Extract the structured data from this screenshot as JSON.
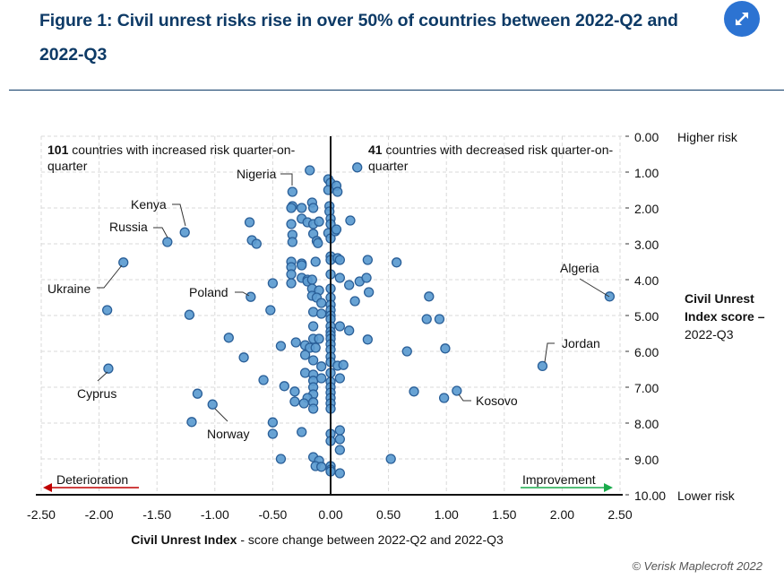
{
  "header": {
    "title": "Figure 1: Civil unrest risks rise in over 50% of countries between 2022-Q2 and 2022-Q3",
    "expand_icon": "expand-arrows-icon"
  },
  "footer": {
    "copyright": "© Verisk Maplecroft 2022"
  },
  "colors": {
    "title": "#0d3a66",
    "dot_fill": "#5b9bd0",
    "dot_stroke": "#2a5f98",
    "deterioration_arrow": "#c00000",
    "improvement_arrow": "#1aab4b",
    "expand_button": "#2c73d2"
  },
  "chart_data": {
    "type": "scatter",
    "title": "Figure 1: Civil unrest risks rise in over 50% of countries between 2022-Q2 and 2022-Q3",
    "xlabel_bold": "Civil Unrest Index",
    "xlabel_rest": " - score change between 2022-Q2 and 2022-Q3",
    "ylabel_line1": "Civil Unrest",
    "ylabel_line2": "Index score –",
    "ylabel_line3": "2022-Q3",
    "xlim": [
      -2.5,
      2.5
    ],
    "ylim": [
      0,
      10
    ],
    "y_inverted": true,
    "y_axis_side": "right",
    "grid": true,
    "x_ticks": [
      "-2.50",
      "-2.00",
      "-1.50",
      "-1.00",
      "-0.50",
      "0.00",
      "0.50",
      "1.00",
      "1.50",
      "2.00",
      "2.50"
    ],
    "y_ticks": [
      "0.00",
      "1.00",
      "2.00",
      "3.00",
      "4.00",
      "5.00",
      "6.00",
      "7.00",
      "8.00",
      "9.00",
      "10.00"
    ],
    "y_top_note": "Higher risk",
    "y_bottom_note": "Lower risk",
    "annotation_left": {
      "count": "101",
      "text": " countries with increased risk quarter-on-",
      "text2": "quarter"
    },
    "annotation_right": {
      "count": "41",
      "text": " countries with decreased risk quarter-on-",
      "text2": "quarter"
    },
    "direction_left": "Deterioration",
    "direction_right": "Improvement",
    "labeled_points": [
      {
        "name": "Nigeria",
        "x": -0.33,
        "y": 1.55
      },
      {
        "name": "Kenya",
        "x": -1.26,
        "y": 2.68
      },
      {
        "name": "Russia",
        "x": -1.41,
        "y": 2.95
      },
      {
        "name": "Ukraine",
        "x": -1.79,
        "y": 3.52
      },
      {
        "name": "Poland",
        "x": -0.69,
        "y": 4.48
      },
      {
        "name": "Cyprus",
        "x": -1.92,
        "y": 6.48
      },
      {
        "name": "Norway",
        "x": -1.02,
        "y": 7.48
      },
      {
        "name": "Algeria",
        "x": 2.41,
        "y": 4.47
      },
      {
        "name": "Jordan",
        "x": 1.83,
        "y": 6.41
      },
      {
        "name": "Kosovo",
        "x": 1.09,
        "y": 7.1
      }
    ],
    "points": [
      {
        "x": -0.18,
        "y": 0.95
      },
      {
        "x": 0.23,
        "y": 0.87
      },
      {
        "x": -0.02,
        "y": 1.2
      },
      {
        "x": 0.0,
        "y": 1.3
      },
      {
        "x": 0.05,
        "y": 1.38
      },
      {
        "x": 0.06,
        "y": 1.55
      },
      {
        "x": -0.02,
        "y": 1.5
      },
      {
        "x": -0.33,
        "y": 1.95
      },
      {
        "x": -0.34,
        "y": 2.0
      },
      {
        "x": -0.25,
        "y": 2.0
      },
      {
        "x": -0.16,
        "y": 1.85
      },
      {
        "x": -0.15,
        "y": 2.0
      },
      {
        "x": -0.01,
        "y": 1.95
      },
      {
        "x": -0.01,
        "y": 2.1
      },
      {
        "x": -0.34,
        "y": 2.45
      },
      {
        "x": -0.25,
        "y": 2.3
      },
      {
        "x": -0.2,
        "y": 2.4
      },
      {
        "x": -0.15,
        "y": 2.45
      },
      {
        "x": -0.1,
        "y": 2.38
      },
      {
        "x": 0.0,
        "y": 2.3
      },
      {
        "x": 0.0,
        "y": 2.45
      },
      {
        "x": 0.17,
        "y": 2.35
      },
      {
        "x": -0.7,
        "y": 2.4
      },
      {
        "x": -0.33,
        "y": 2.75
      },
      {
        "x": -0.33,
        "y": 2.95
      },
      {
        "x": -0.15,
        "y": 2.72
      },
      {
        "x": -0.12,
        "y": 2.92
      },
      {
        "x": -0.11,
        "y": 2.98
      },
      {
        "x": -0.02,
        "y": 2.7
      },
      {
        "x": 0.0,
        "y": 2.85
      },
      {
        "x": 0.04,
        "y": 2.65
      },
      {
        "x": 0.05,
        "y": 2.6
      },
      {
        "x": -0.68,
        "y": 2.9
      },
      {
        "x": -0.64,
        "y": 3.0
      },
      {
        "x": -0.34,
        "y": 3.5
      },
      {
        "x": -0.34,
        "y": 3.65
      },
      {
        "x": -0.25,
        "y": 3.55
      },
      {
        "x": -0.25,
        "y": 3.6
      },
      {
        "x": -0.13,
        "y": 3.5
      },
      {
        "x": 0.0,
        "y": 3.35
      },
      {
        "x": 0.0,
        "y": 3.45
      },
      {
        "x": 0.06,
        "y": 3.4
      },
      {
        "x": 0.08,
        "y": 3.45
      },
      {
        "x": 0.32,
        "y": 3.45
      },
      {
        "x": 0.57,
        "y": 3.52
      },
      {
        "x": -0.34,
        "y": 3.85
      },
      {
        "x": -0.25,
        "y": 3.95
      },
      {
        "x": -0.2,
        "y": 4.0
      },
      {
        "x": 0.0,
        "y": 3.85
      },
      {
        "x": 0.08,
        "y": 3.95
      },
      {
        "x": -0.34,
        "y": 4.1
      },
      {
        "x": -0.2,
        "y": 4.05
      },
      {
        "x": -0.16,
        "y": 4.0
      },
      {
        "x": -0.16,
        "y": 4.25
      },
      {
        "x": -0.1,
        "y": 4.3
      },
      {
        "x": 0.0,
        "y": 4.25
      },
      {
        "x": 0.16,
        "y": 4.15
      },
      {
        "x": 0.25,
        "y": 4.05
      },
      {
        "x": 0.31,
        "y": 3.95
      },
      {
        "x": 0.33,
        "y": 4.35
      },
      {
        "x": -0.5,
        "y": 4.1
      },
      {
        "x": -0.16,
        "y": 4.45
      },
      {
        "x": -0.12,
        "y": 4.5
      },
      {
        "x": -0.08,
        "y": 4.65
      },
      {
        "x": 0.0,
        "y": 4.5
      },
      {
        "x": 0.0,
        "y": 4.7
      },
      {
        "x": 0.21,
        "y": 4.6
      },
      {
        "x": 0.85,
        "y": 4.47
      },
      {
        "x": -1.93,
        "y": 4.85
      },
      {
        "x": -1.22,
        "y": 4.98
      },
      {
        "x": -0.52,
        "y": 4.85
      },
      {
        "x": -0.15,
        "y": 4.9
      },
      {
        "x": -0.08,
        "y": 4.95
      },
      {
        "x": 0.0,
        "y": 4.85
      },
      {
        "x": 0.0,
        "y": 5.0
      },
      {
        "x": 0.0,
        "y": 5.1
      },
      {
        "x": 0.83,
        "y": 5.1
      },
      {
        "x": 0.94,
        "y": 5.1
      },
      {
        "x": -0.15,
        "y": 5.3
      },
      {
        "x": 0.0,
        "y": 5.3
      },
      {
        "x": 0.0,
        "y": 5.45
      },
      {
        "x": 0.0,
        "y": 5.55
      },
      {
        "x": 0.08,
        "y": 5.3
      },
      {
        "x": 0.16,
        "y": 5.42
      },
      {
        "x": -0.88,
        "y": 5.62
      },
      {
        "x": -0.15,
        "y": 5.65
      },
      {
        "x": -0.1,
        "y": 5.65
      },
      {
        "x": 0.0,
        "y": 5.65
      },
      {
        "x": 0.32,
        "y": 5.67
      },
      {
        "x": -0.43,
        "y": 5.85
      },
      {
        "x": -0.3,
        "y": 5.75
      },
      {
        "x": -0.22,
        "y": 5.83
      },
      {
        "x": -0.18,
        "y": 5.9
      },
      {
        "x": -0.13,
        "y": 5.9
      },
      {
        "x": 0.0,
        "y": 5.8
      },
      {
        "x": 0.0,
        "y": 5.95
      },
      {
        "x": 0.66,
        "y": 6.0
      },
      {
        "x": 0.99,
        "y": 5.92
      },
      {
        "x": -0.75,
        "y": 6.17
      },
      {
        "x": -0.22,
        "y": 6.1
      },
      {
        "x": -0.15,
        "y": 6.25
      },
      {
        "x": -0.08,
        "y": 6.42
      },
      {
        "x": 0.0,
        "y": 6.15
      },
      {
        "x": 0.0,
        "y": 6.3
      },
      {
        "x": 0.06,
        "y": 6.4
      },
      {
        "x": 0.11,
        "y": 6.38
      },
      {
        "x": -0.58,
        "y": 6.8
      },
      {
        "x": -0.22,
        "y": 6.6
      },
      {
        "x": -0.15,
        "y": 6.65
      },
      {
        "x": -0.15,
        "y": 6.82
      },
      {
        "x": -0.08,
        "y": 6.75
      },
      {
        "x": 0.0,
        "y": 6.6
      },
      {
        "x": 0.0,
        "y": 6.85
      },
      {
        "x": 0.08,
        "y": 6.75
      },
      {
        "x": -1.15,
        "y": 7.18
      },
      {
        "x": -0.4,
        "y": 6.97
      },
      {
        "x": -0.31,
        "y": 7.12
      },
      {
        "x": -0.15,
        "y": 7.0
      },
      {
        "x": -0.15,
        "y": 7.2
      },
      {
        "x": -0.2,
        "y": 7.3
      },
      {
        "x": 0.0,
        "y": 7.0
      },
      {
        "x": 0.0,
        "y": 7.15
      },
      {
        "x": 0.0,
        "y": 7.3
      },
      {
        "x": 0.72,
        "y": 7.12
      },
      {
        "x": 0.98,
        "y": 7.3
      },
      {
        "x": -0.31,
        "y": 7.4
      },
      {
        "x": -0.23,
        "y": 7.45
      },
      {
        "x": -0.15,
        "y": 7.42
      },
      {
        "x": -0.15,
        "y": 7.6
      },
      {
        "x": 0.0,
        "y": 7.45
      },
      {
        "x": 0.0,
        "y": 7.6
      },
      {
        "x": -1.2,
        "y": 7.97
      },
      {
        "x": -0.5,
        "y": 7.98
      },
      {
        "x": -0.5,
        "y": 8.3
      },
      {
        "x": -0.25,
        "y": 8.25
      },
      {
        "x": 0.0,
        "y": 8.3
      },
      {
        "x": 0.0,
        "y": 8.5
      },
      {
        "x": 0.08,
        "y": 8.2
      },
      {
        "x": 0.08,
        "y": 8.45
      },
      {
        "x": 0.08,
        "y": 8.75
      },
      {
        "x": -0.43,
        "y": 9.0
      },
      {
        "x": -0.15,
        "y": 8.95
      },
      {
        "x": -0.1,
        "y": 9.05
      },
      {
        "x": -0.13,
        "y": 9.2
      },
      {
        "x": -0.08,
        "y": 9.22
      },
      {
        "x": 0.0,
        "y": 9.2
      },
      {
        "x": 0.0,
        "y": 9.3
      },
      {
        "x": 0.0,
        "y": 9.35
      },
      {
        "x": 0.08,
        "y": 9.4
      },
      {
        "x": 0.52,
        "y": 9.0
      }
    ]
  }
}
